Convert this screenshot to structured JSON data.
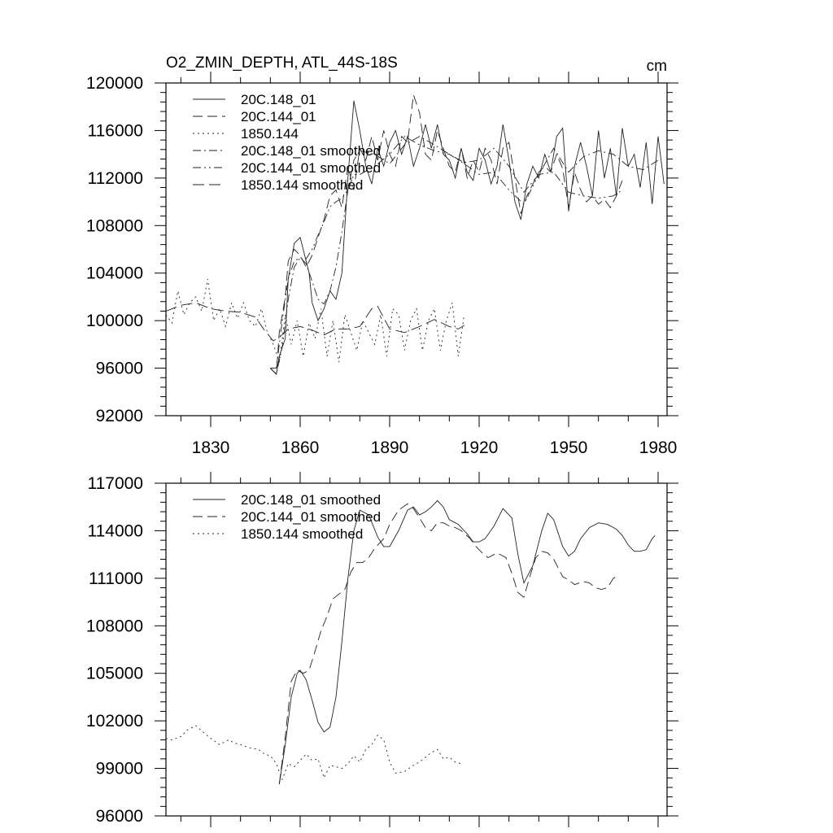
{
  "chart_data": [
    {
      "type": "line",
      "title": "O2_ZMIN_DEPTH, ATL_44S-18S",
      "units": "cm",
      "xlim": [
        1815,
        1983
      ],
      "ylim": [
        92000,
        120000
      ],
      "xticks": [
        1830,
        1860,
        1890,
        1920,
        1950,
        1980
      ],
      "xtick_labels": [
        "1830",
        "1860",
        "1890",
        "1920",
        "1950",
        "1980"
      ],
      "yticks": [
        92000,
        96000,
        100000,
        104000,
        108000,
        112000,
        116000,
        120000
      ],
      "ytick_labels": [
        "92000",
        "96000",
        "100000",
        "104000",
        "108000",
        "112000",
        "116000",
        "120000"
      ],
      "grid": false,
      "legend_position": "top-left",
      "series": [
        {
          "name": "20C.148_01",
          "style": "solid",
          "x": [
            1850,
            1852,
            1853,
            1855,
            1856,
            1858,
            1860,
            1861,
            1863,
            1864,
            1866,
            1868,
            1870,
            1872,
            1874,
            1876,
            1878,
            1880,
            1882,
            1884,
            1886,
            1888,
            1890,
            1892,
            1894,
            1896,
            1898,
            1900,
            1902,
            1904,
            1906,
            1908,
            1910,
            1912,
            1914,
            1916,
            1918,
            1920,
            1922,
            1924,
            1926,
            1928,
            1930,
            1932,
            1934,
            1936,
            1938,
            1940,
            1942,
            1944,
            1946,
            1948,
            1950,
            1952,
            1954,
            1956,
            1958,
            1960,
            1962,
            1964,
            1966,
            1968,
            1970,
            1972,
            1974,
            1976,
            1978,
            1980,
            1982
          ],
          "y": [
            96000,
            95500,
            97000,
            98500,
            103500,
            106500,
            107000,
            106000,
            104000,
            101500,
            100000,
            101000,
            102500,
            101800,
            104000,
            112000,
            118500,
            116000,
            113000,
            111500,
            114500,
            113000,
            115000,
            116000,
            114000,
            115500,
            113000,
            114500,
            116500,
            114500,
            116500,
            114000,
            113500,
            112000,
            114500,
            112500,
            111800,
            114500,
            113500,
            111500,
            113000,
            116500,
            113500,
            110000,
            108500,
            111500,
            113000,
            112000,
            114000,
            112500,
            115500,
            116200,
            109200,
            113000,
            115000,
            113000,
            110500,
            116000,
            112000,
            114500,
            110500,
            116200,
            113000,
            114000,
            111200,
            115000,
            109800,
            115500,
            111500
          ]
        },
        {
          "name": "20C.144_01",
          "style": "dash",
          "x": [
            1850,
            1852,
            1853,
            1855,
            1856,
            1858,
            1860,
            1862,
            1864,
            1866,
            1868,
            1870,
            1872,
            1874,
            1876,
            1878,
            1880,
            1882,
            1884,
            1886,
            1888,
            1890,
            1892,
            1894,
            1896,
            1898,
            1900,
            1902,
            1904,
            1906,
            1908,
            1910,
            1912,
            1914,
            1916,
            1918,
            1920,
            1922,
            1924,
            1926,
            1928,
            1930,
            1932,
            1934,
            1936,
            1938,
            1940,
            1942,
            1944,
            1946,
            1948,
            1950,
            1952,
            1954,
            1956,
            1958,
            1960,
            1962,
            1964,
            1966,
            1968
          ],
          "y": [
            96000,
            95500,
            99000,
            102000,
            105000,
            106000,
            105500,
            104500,
            105500,
            107000,
            108500,
            110500,
            111000,
            109500,
            113000,
            111000,
            114500,
            113500,
            115500,
            113500,
            116000,
            114000,
            113000,
            115500,
            115000,
            119000,
            117500,
            114000,
            113500,
            116000,
            114500,
            113000,
            112500,
            114500,
            112000,
            113500,
            112500,
            114500,
            113500,
            111500,
            114500,
            115000,
            112000,
            109000,
            110500,
            111500,
            112500,
            113000,
            112500,
            114000,
            112800,
            109500,
            112500,
            111000,
            110000,
            110500,
            109800,
            110200,
            109500,
            110500,
            111800
          ]
        },
        {
          "name": "1850.144",
          "style": "dot",
          "x": [
            1815,
            1817,
            1819,
            1821,
            1823,
            1825,
            1827,
            1829,
            1831,
            1833,
            1835,
            1837,
            1839,
            1841,
            1843,
            1845,
            1847,
            1849,
            1851,
            1853,
            1855,
            1857,
            1859,
            1861,
            1863,
            1865,
            1867,
            1869,
            1871,
            1873,
            1875,
            1877,
            1879,
            1881,
            1883,
            1885,
            1887,
            1889,
            1891,
            1893,
            1895,
            1897,
            1899,
            1901,
            1903,
            1905,
            1907,
            1909,
            1911,
            1913,
            1915
          ],
          "y": [
            100500,
            99800,
            102500,
            100500,
            101500,
            102000,
            100800,
            103500,
            100000,
            101000,
            99500,
            101500,
            100200,
            101500,
            100000,
            99500,
            101000,
            99000,
            98000,
            96500,
            100500,
            98000,
            100000,
            97000,
            99800,
            98500,
            101000,
            97000,
            100000,
            96500,
            100500,
            99000,
            97500,
            100000,
            99000,
            98000,
            100500,
            97000,
            101000,
            100500,
            97500,
            100000,
            101000,
            97500,
            100000,
            101000,
            97500,
            100000,
            101500,
            97000,
            100500
          ]
        },
        {
          "name": "20C.148_01 smoothed",
          "style": "dashdot",
          "x": [
            1850,
            1852,
            1854,
            1856,
            1858,
            1860,
            1862,
            1864,
            1866,
            1868,
            1870,
            1872,
            1874,
            1876,
            1878,
            1880,
            1885,
            1890,
            1895,
            1900,
            1905,
            1910,
            1915,
            1920,
            1925,
            1930,
            1935,
            1940,
            1945,
            1950,
            1955,
            1960,
            1965,
            1970,
            1975,
            1980
          ],
          "y": [
            96000,
            95500,
            97800,
            101800,
            104500,
            105300,
            104800,
            103300,
            101800,
            101400,
            102500,
            104500,
            107500,
            111000,
            113500,
            114300,
            114000,
            113200,
            114800,
            115500,
            114800,
            114000,
            113300,
            113500,
            114500,
            113000,
            110800,
            112300,
            114500,
            112500,
            113800,
            114300,
            114000,
            113000,
            112700,
            113500
          ]
        },
        {
          "name": "20C.144_01 smoothed",
          "style": "dashdotdot",
          "x": [
            1850,
            1852,
            1854,
            1856,
            1858,
            1860,
            1862,
            1864,
            1866,
            1868,
            1870,
            1872,
            1874,
            1876,
            1878,
            1880,
            1885,
            1890,
            1895,
            1900,
            1905,
            1910,
            1915,
            1920,
            1925,
            1930,
            1935,
            1940,
            1945,
            1950,
            1955,
            1960,
            1965,
            1968
          ],
          "y": [
            96000,
            96000,
            100000,
            103500,
            105000,
            105300,
            105200,
            106000,
            107200,
            108300,
            109600,
            110000,
            110300,
            111000,
            112300,
            112300,
            113000,
            114000,
            115500,
            114800,
            114300,
            114000,
            113200,
            112300,
            112500,
            111000,
            109800,
            112300,
            112500,
            110800,
            110500,
            110300,
            110500,
            111000
          ]
        },
        {
          "name": "1850.144 smoothed",
          "style": "longdash",
          "x": [
            1815,
            1820,
            1825,
            1830,
            1835,
            1840,
            1845,
            1848,
            1851,
            1853,
            1856,
            1860,
            1864,
            1868,
            1872,
            1876,
            1880,
            1884,
            1886,
            1890,
            1895,
            1900,
            1905,
            1910,
            1913,
            1915
          ],
          "y": [
            100800,
            101300,
            101500,
            101000,
            100800,
            100700,
            100300,
            99200,
            98300,
            98600,
            99300,
            99500,
            99200,
            98800,
            99300,
            99300,
            99500,
            101000,
            101200,
            99300,
            99000,
            99500,
            100100,
            99500,
            99300,
            99600
          ]
        }
      ]
    },
    {
      "type": "line",
      "xlim": [
        1815,
        1983
      ],
      "ylim": [
        96000,
        117000
      ],
      "xticks": [
        1830,
        1860,
        1890,
        1920,
        1950,
        1980
      ],
      "yticks": [
        96000,
        99000,
        102000,
        105000,
        108000,
        111000,
        114000,
        117000
      ],
      "ytick_labels": [
        "96000",
        "99000",
        "102000",
        "105000",
        "108000",
        "111000",
        "114000",
        "117000"
      ],
      "grid": false,
      "legend_position": "top-left",
      "series": [
        {
          "name": "20C.148_01 smoothed",
          "style": "solid",
          "x": [
            1853,
            1855,
            1857,
            1859,
            1860,
            1862,
            1864,
            1866,
            1868,
            1870,
            1872,
            1874,
            1876,
            1878,
            1880,
            1883,
            1886,
            1888,
            1890,
            1893,
            1896,
            1898,
            1900,
            1902,
            1904,
            1906,
            1908,
            1910,
            1913,
            1916,
            1918,
            1920,
            1922,
            1925,
            1928,
            1931,
            1933,
            1935,
            1938,
            1941,
            1943,
            1945,
            1948,
            1950,
            1952,
            1954,
            1957,
            1960,
            1963,
            1966,
            1968,
            1970,
            1972,
            1974,
            1976,
            1978,
            1979
          ],
          "y": [
            98000,
            100500,
            103500,
            105000,
            105200,
            104600,
            103300,
            101900,
            101300,
            101600,
            103500,
            107000,
            111000,
            114000,
            115300,
            115000,
            113600,
            113000,
            113000,
            114000,
            115300,
            115500,
            115000,
            115200,
            115500,
            115900,
            115500,
            114700,
            114400,
            113800,
            113300,
            113300,
            113500,
            114300,
            115400,
            114800,
            112500,
            110700,
            111800,
            114000,
            115100,
            114700,
            113000,
            112400,
            112700,
            113500,
            114200,
            114500,
            114400,
            114100,
            113700,
            113100,
            112700,
            112700,
            112800,
            113500,
            113700
          ]
        },
        {
          "name": "20C.144_01 smoothed",
          "style": "dash",
          "x": [
            1853,
            1855,
            1857,
            1859,
            1861,
            1863,
            1865,
            1867,
            1869,
            1871,
            1873,
            1875,
            1877,
            1879,
            1881,
            1883,
            1885,
            1888,
            1890,
            1893,
            1896,
            1898,
            1900,
            1902,
            1904,
            1906,
            1908,
            1910,
            1912,
            1914,
            1917,
            1919,
            1921,
            1923,
            1926,
            1929,
            1931,
            1933,
            1935,
            1937,
            1939,
            1941,
            1943,
            1945,
            1948,
            1950,
            1952,
            1955,
            1957,
            1959,
            1961,
            1963,
            1965,
            1967
          ],
          "y": [
            98000,
            101000,
            104500,
            105200,
            105000,
            105200,
            106400,
            107700,
            108600,
            109700,
            110000,
            110300,
            111400,
            112000,
            112000,
            112300,
            112900,
            113500,
            114400,
            115300,
            115700,
            115400,
            114800,
            114200,
            114000,
            114500,
            114500,
            114300,
            114200,
            114000,
            113500,
            113000,
            112600,
            112300,
            112600,
            112300,
            111300,
            110100,
            109800,
            111100,
            112300,
            112700,
            112600,
            112200,
            111100,
            110900,
            110600,
            110800,
            110700,
            110400,
            110300,
            110400,
            111000,
            111200
          ]
        },
        {
          "name": "1850.144 smoothed",
          "style": "dot",
          "x": [
            1815,
            1817,
            1820,
            1822,
            1825,
            1828,
            1830,
            1833,
            1836,
            1838,
            1840,
            1843,
            1846,
            1848,
            1850,
            1852,
            1854,
            1856,
            1858,
            1860,
            1862,
            1864,
            1866,
            1868,
            1870,
            1872,
            1874,
            1876,
            1878,
            1880,
            1882,
            1884,
            1886,
            1888,
            1890,
            1892,
            1895,
            1898,
            1900,
            1902,
            1904,
            1906,
            1908,
            1910,
            1912,
            1914
          ],
          "y": [
            100900,
            100800,
            101000,
            101400,
            101700,
            101200,
            100900,
            100500,
            100800,
            100600,
            100500,
            100300,
            100200,
            99900,
            99800,
            99300,
            98300,
            99300,
            99100,
            99500,
            99900,
            99500,
            99600,
            98400,
            99200,
            99100,
            99000,
            99300,
            99800,
            99400,
            100200,
            100500,
            101100,
            100800,
            99400,
            98700,
            98800,
            99200,
            99400,
            99700,
            100000,
            100200,
            99600,
            99700,
            99400,
            99300
          ]
        }
      ]
    }
  ]
}
